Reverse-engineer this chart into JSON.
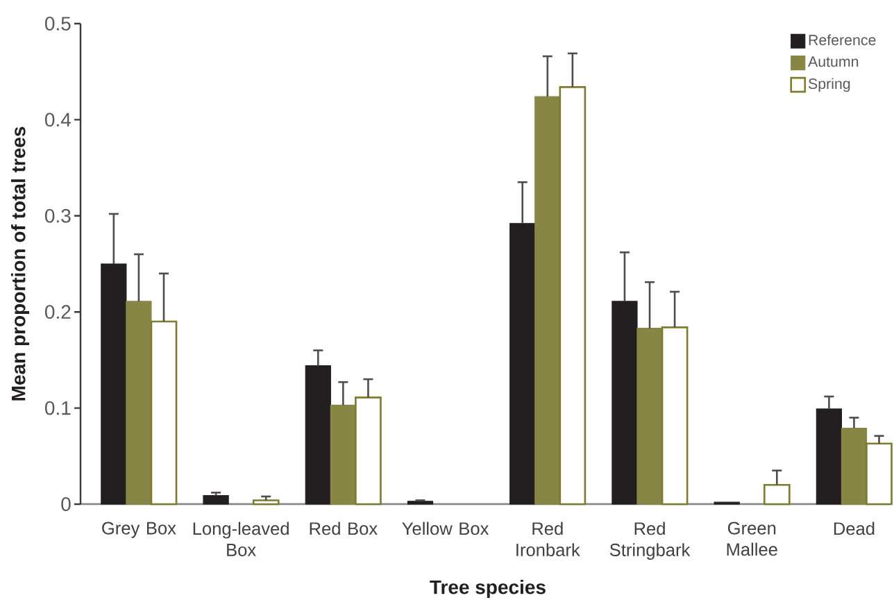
{
  "chart_data": {
    "type": "bar",
    "xlabel": "Tree species",
    "ylabel": "Mean proportion of total trees",
    "categories": [
      "Grey Box",
      "Long-leaved Box",
      "Red Box",
      "Yellow Box",
      "Red Ironbark",
      "Red Stringbark",
      "Green Mallee",
      "Dead"
    ],
    "series": [
      {
        "name": "Reference",
        "color": "#231f20",
        "values": [
          0.25,
          0.009,
          0.144,
          0.003,
          0.292,
          0.211,
          0.002,
          0.099
        ],
        "errors": [
          [
            0.25,
            0.302
          ],
          [
            0.009,
            0.012
          ],
          [
            0.144,
            0.16
          ],
          [
            0.003,
            0.004
          ],
          [
            0.292,
            0.335
          ],
          [
            0.211,
            0.262
          ],
          null,
          [
            0.099,
            0.112
          ]
        ]
      },
      {
        "name": "Autumn",
        "color": "#878645",
        "values": [
          0.211,
          0,
          0.103,
          0,
          0.424,
          0.183,
          0,
          0.079
        ],
        "errors": [
          [
            0.211,
            0.26
          ],
          null,
          [
            0.103,
            0.127
          ],
          null,
          [
            0.424,
            0.466
          ],
          [
            0.183,
            0.231
          ],
          null,
          [
            0.079,
            0.09
          ]
        ]
      },
      {
        "name": "Spring",
        "color": "#ffffff",
        "values": [
          0.19,
          0.004,
          0.111,
          0,
          0.434,
          0.184,
          0.02,
          0.063
        ],
        "errors": [
          [
            0.19,
            0.24
          ],
          [
            0.004,
            0.008
          ],
          [
            0.111,
            0.13
          ],
          null,
          [
            0.434,
            0.469
          ],
          [
            0.184,
            0.221
          ],
          [
            0.02,
            0.035
          ],
          [
            0.063,
            0.071
          ]
        ]
      }
    ],
    "ylim": [
      0,
      0.5
    ],
    "yticks": [
      0,
      0.1,
      0.2,
      0.3,
      0.4,
      0.5
    ],
    "legend": "top right"
  }
}
